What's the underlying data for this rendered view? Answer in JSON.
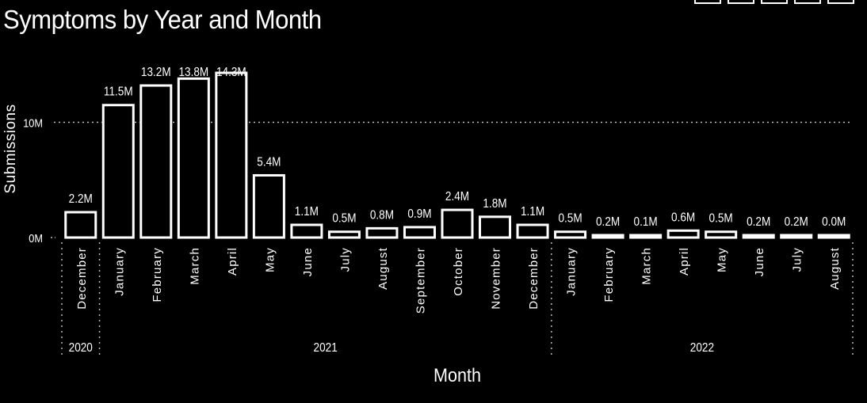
{
  "chart_data": {
    "type": "bar",
    "title": "Symptoms by Year and Month",
    "xlabel": "Month",
    "ylabel": "Submissions",
    "ylim": [
      0,
      14.3
    ],
    "yticks": [
      {
        "value": 0,
        "label": "0M"
      },
      {
        "value": 10,
        "label": "10M"
      }
    ],
    "grid": "dotted horizontal",
    "categories": [
      "December",
      "January",
      "February",
      "March",
      "April",
      "May",
      "June",
      "July",
      "August",
      "September",
      "October",
      "November",
      "December",
      "January",
      "February",
      "March",
      "April",
      "May",
      "June",
      "July",
      "August"
    ],
    "values": [
      2.2,
      11.5,
      13.2,
      13.8,
      14.3,
      5.4,
      1.1,
      0.5,
      0.8,
      0.9,
      2.4,
      1.8,
      1.1,
      0.5,
      0.2,
      0.1,
      0.6,
      0.5,
      0.2,
      0.2,
      0.0
    ],
    "data_labels": [
      "2.2M",
      "11.5M",
      "13.2M",
      "13.8M",
      "14.3M",
      "5.4M",
      "1.1M",
      "0.5M",
      "0.8M",
      "0.9M",
      "2.4M",
      "1.8M",
      "1.1M",
      "0.5M",
      "0.2M",
      "0.1M",
      "0.6M",
      "0.5M",
      "0.2M",
      "0.2M",
      "0.0M"
    ],
    "years": [
      {
        "label": "2020",
        "start": 0,
        "end": 0
      },
      {
        "label": "2021",
        "start": 1,
        "end": 12
      },
      {
        "label": "2022",
        "start": 13,
        "end": 20
      }
    ]
  },
  "colors": {
    "background": "#000000",
    "bar_fill": "#000000",
    "bar_stroke": "#ffffff",
    "text": "#ffffff",
    "grid": "#bbbbbb"
  }
}
